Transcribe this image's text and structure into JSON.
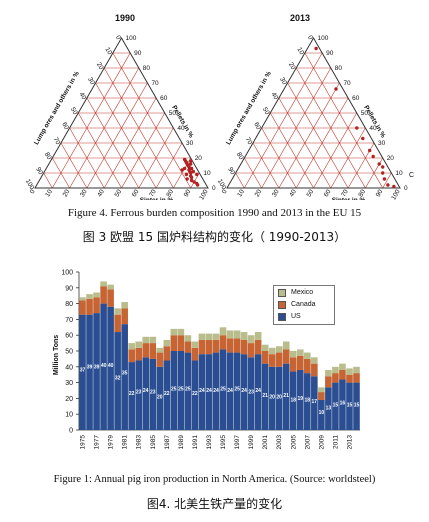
{
  "ternary": {
    "left_title": "1990",
    "right_title": "2013",
    "axis_sinter": "Sinter in %",
    "axis_pellets": "Pellets in %",
    "axis_lump": "Lump ores and others in %",
    "ticks": [
      "0",
      "10",
      "20",
      "30",
      "40",
      "50",
      "60",
      "70",
      "80",
      "90",
      "100"
    ],
    "corner_c": "C"
  },
  "caption_fig4_en": "Figure 4. Ferrous burden composition 1990 and 2013 in the EU 15",
  "caption_fig3_zh": "图 3  欧盟 15 国炉料结构的变化（ 1990-2013）",
  "caption_fig1_en": "Figure 1:  Annual pig iron production in North America. (Source: worldsteel)",
  "caption_fig4_zh": "图4. 北美生铁产量的变化",
  "chart_data": {
    "type": "bar",
    "stacked": true,
    "ylabel": "Million Tons",
    "ylim": [
      0,
      100
    ],
    "y_ticks": [
      0,
      10,
      20,
      30,
      40,
      50,
      60,
      70,
      80,
      90,
      100
    ],
    "categories": [
      "1975",
      "1976",
      "1977",
      "1978",
      "1979",
      "1980",
      "1981",
      "1982",
      "1983",
      "1984",
      "1985",
      "1986",
      "1987",
      "1988",
      "1989",
      "1990",
      "1991",
      "1992",
      "1993",
      "1994",
      "1995",
      "1996",
      "1997",
      "1998",
      "1999",
      "2000",
      "2001",
      "2002",
      "2003",
      "2004",
      "2005",
      "2006",
      "2007",
      "2008",
      "2009",
      "2010",
      "2011",
      "2012",
      "2013",
      "2014"
    ],
    "x_tick_labels": [
      "1975",
      "",
      "1977",
      "",
      "1979",
      "",
      "1981",
      "",
      "1983",
      "",
      "1985",
      "",
      "1987",
      "",
      "1989",
      "",
      "1991",
      "",
      "1993",
      "",
      "1995",
      "",
      "1997",
      "",
      "1999",
      "",
      "2001",
      "",
      "2003",
      "",
      "2005",
      "",
      "2007",
      "",
      "2009",
      "",
      "2011",
      "",
      "2013",
      ""
    ],
    "series": [
      {
        "name": "US",
        "color": "#2a4e91",
        "values": [
          73,
          73,
          74,
          80,
          78,
          62,
          67,
          43,
          44,
          46,
          45,
          40,
          44,
          50,
          50,
          49,
          44,
          48,
          48,
          49,
          51,
          49,
          49,
          48,
          46,
          48,
          42,
          40,
          40,
          42,
          37,
          38,
          36,
          34,
          19,
          27,
          30,
          32,
          30,
          30
        ]
      },
      {
        "name": "Canada",
        "color": "#c76433",
        "values": [
          9,
          10,
          10,
          11,
          11,
          11,
          10,
          8,
          8,
          9,
          10,
          9,
          9,
          10,
          10,
          7,
          8,
          9,
          9,
          8,
          9,
          9,
          9,
          9,
          9,
          9,
          8,
          8,
          9,
          9,
          9,
          9,
          9,
          8,
          5,
          7,
          6,
          6,
          5,
          6
        ]
      },
      {
        "name": "Mexico",
        "color": "#b9bd8c",
        "values": [
          2,
          3,
          3,
          3,
          3,
          4,
          4,
          4,
          4,
          4,
          4,
          3,
          4,
          4,
          4,
          4,
          4,
          4,
          4,
          4,
          5,
          5,
          5,
          5,
          5,
          5,
          4,
          4,
          4,
          5,
          4,
          4,
          4,
          4,
          3,
          4,
          4,
          4,
          4,
          4
        ]
      }
    ],
    "annotations_us": [
      37,
      39,
      39,
      40,
      40,
      32,
      35,
      22,
      23,
      24,
      23,
      20,
      22,
      25,
      25,
      25,
      22,
      24,
      24,
      24,
      25,
      24,
      25,
      24,
      23,
      24,
      21,
      20,
      20,
      21,
      18,
      19,
      18,
      17,
      10,
      13,
      15,
      16,
      15,
      15
    ]
  }
}
